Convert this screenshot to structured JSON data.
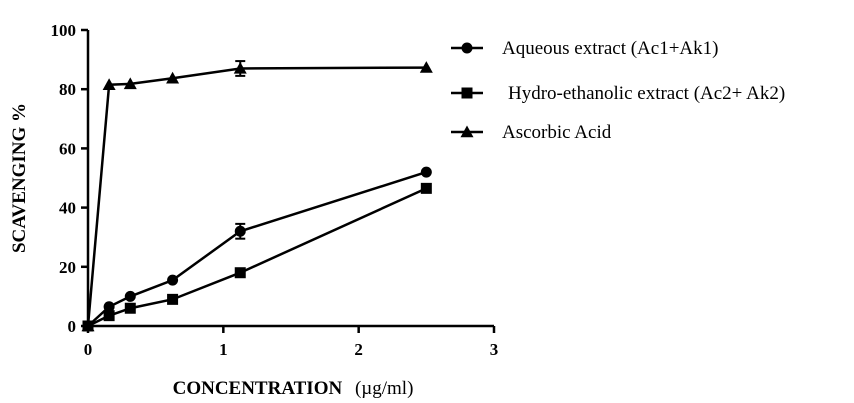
{
  "chart_data": {
    "type": "line",
    "xlabel": "CONCENTRATION",
    "xlabel_unit": "(µg/ml)",
    "ylabel": "SCAVENGING %",
    "xlim": [
      0,
      3
    ],
    "ylim": [
      0,
      100
    ],
    "xticks": [
      "0",
      "1",
      "2",
      "3"
    ],
    "yticks": [
      "0",
      "20",
      "40",
      "60",
      "80",
      "100"
    ],
    "grid": false,
    "legend_position": "top-right",
    "series": [
      {
        "name": "Aqueous extract (Ac1+Ak1)",
        "marker": "circle",
        "x": [
          0,
          0.156,
          0.3125,
          0.625,
          1.125,
          2.5
        ],
        "y": [
          0,
          6.5,
          10,
          15.5,
          32,
          52
        ],
        "error": [
          0,
          0,
          0,
          0,
          2.5,
          0
        ]
      },
      {
        "name": "Hydro-ethanolic extract (Ac2+ Ak2)",
        "marker": "square",
        "x": [
          0,
          0.156,
          0.3125,
          0.625,
          1.125,
          2.5
        ],
        "y": [
          0,
          3.5,
          6,
          9,
          18,
          46.5
        ],
        "error": [
          0,
          0,
          0,
          0,
          0,
          0
        ]
      },
      {
        "name": "Ascorbic Acid",
        "marker": "triangle",
        "x": [
          0,
          0.156,
          0.3125,
          0.625,
          1.125,
          2.5
        ],
        "y": [
          0,
          81.5,
          81.8,
          83.7,
          87,
          87.3
        ],
        "error": [
          0,
          0,
          0,
          0,
          2.5,
          0
        ]
      }
    ]
  }
}
